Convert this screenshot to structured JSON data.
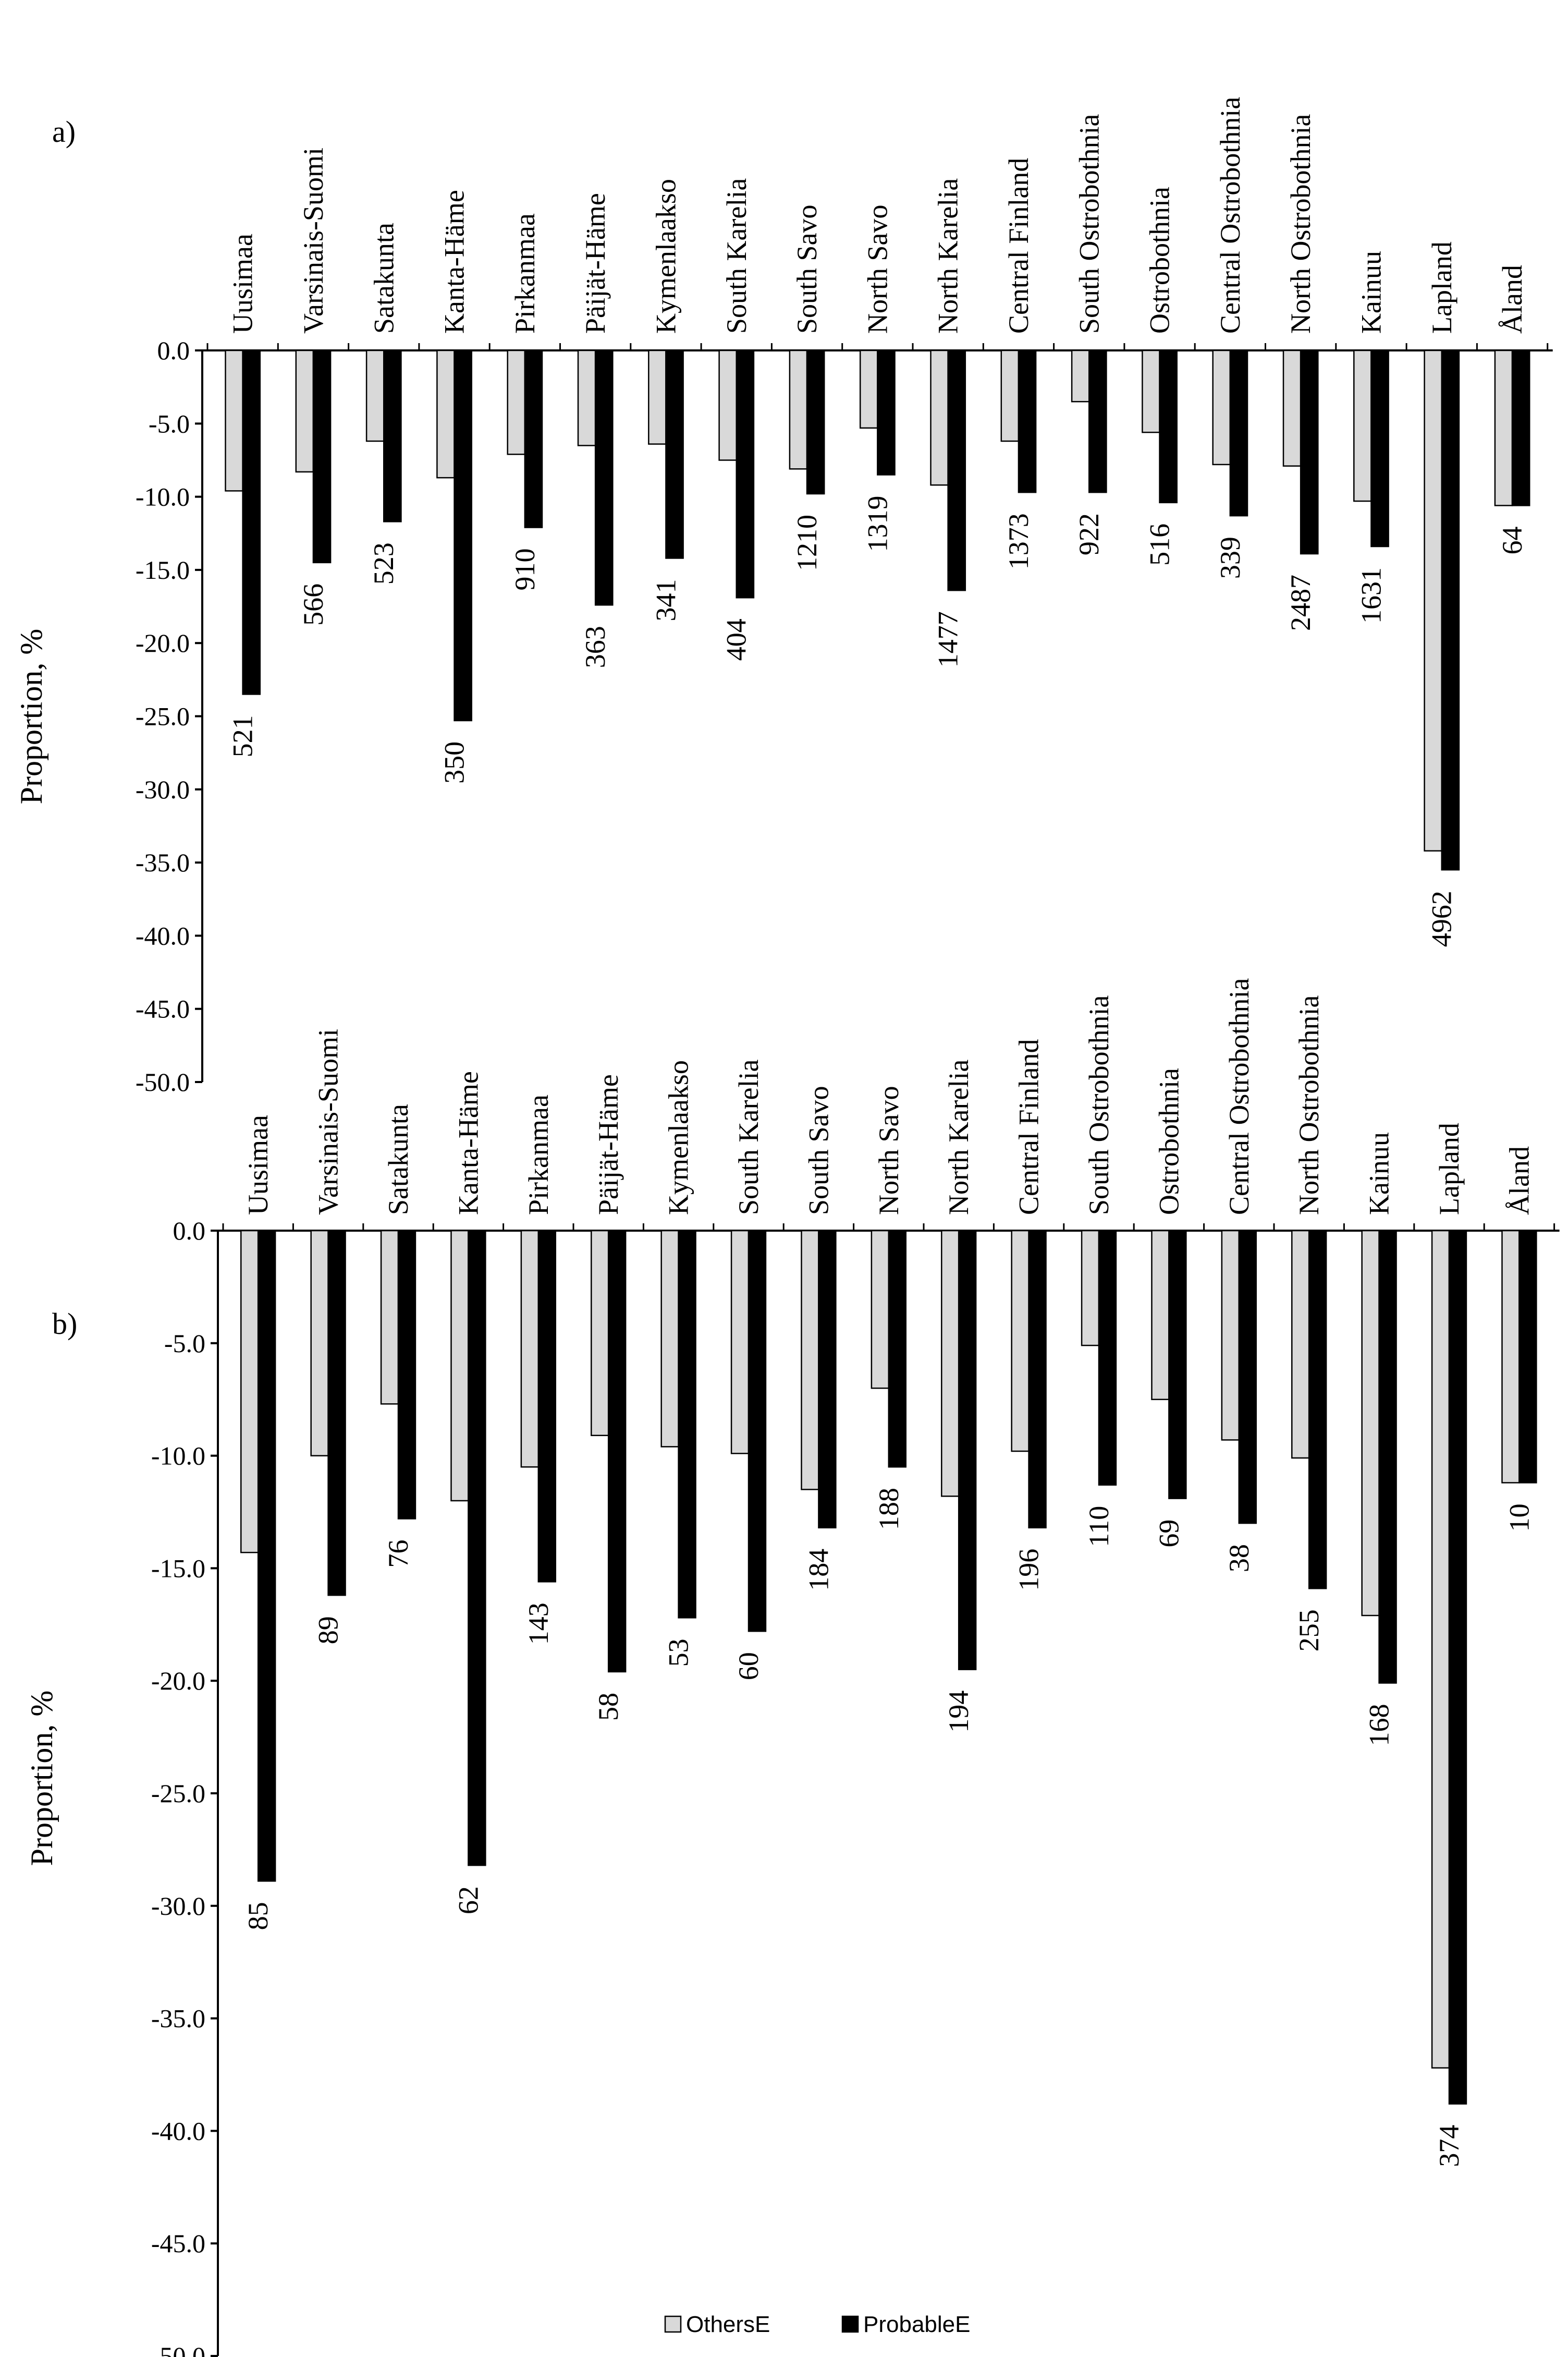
{
  "chart_data": [
    {
      "panel_label": "a)",
      "type": "bar",
      "ylabel": "Proportion, %",
      "ylim": [
        -50,
        0
      ],
      "ytick_step": 5,
      "categories": [
        "Uusimaa",
        "Varsinais-Suomi",
        "Satakunta",
        "Kanta-Häme",
        "Pirkanmaa",
        "Päijät-Häme",
        "Kymenlaakso",
        "South Karelia",
        "South Savo",
        "North Savo",
        "North Karelia",
        "Central Finland",
        "South Ostrobothnia",
        "Ostrobothnia",
        "Central Ostrobothnia",
        "North Ostrobothnia",
        "Kainuu",
        "Lapland",
        "Åland"
      ],
      "series": [
        {
          "name": "OthersE",
          "color": "#d9d9d9",
          "values": [
            -9.6,
            -8.3,
            -6.2,
            -8.7,
            -7.1,
            -6.5,
            -6.4,
            -7.5,
            -8.1,
            -5.3,
            -9.2,
            -6.2,
            -3.5,
            -5.6,
            -7.8,
            -7.9,
            -10.3,
            -34.2,
            -10.6
          ]
        },
        {
          "name": "ProbableE",
          "color": "#000000",
          "values": [
            -23.5,
            -14.5,
            -11.7,
            -25.3,
            -12.1,
            -17.4,
            -14.2,
            -16.9,
            -9.8,
            -8.5,
            -16.4,
            -9.7,
            -9.7,
            -10.4,
            -11.3,
            -13.9,
            -13.4,
            -35.5,
            -10.6
          ]
        }
      ],
      "data_labels": [
        "521",
        "566",
        "523",
        "350",
        "910",
        "363",
        "341",
        "404",
        "1210",
        "1319",
        "1477",
        "1373",
        "922",
        "516",
        "339",
        "2487",
        "1631",
        "4962",
        "64"
      ]
    },
    {
      "panel_label": "b)",
      "type": "bar",
      "ylabel": "Proportion, %",
      "ylim": [
        -50,
        0
      ],
      "ytick_step": 5,
      "categories": [
        "Uusimaa",
        "Varsinais-Suomi",
        "Satakunta",
        "Kanta-Häme",
        "Pirkanmaa",
        "Päijät-Häme",
        "Kymenlaakso",
        "South Karelia",
        "South Savo",
        "North Savo",
        "North Karelia",
        "Central Finland",
        "South Ostrobothnia",
        "Ostrobothnia",
        "Central Ostrobothnia",
        "North Ostrobothnia",
        "Kainuu",
        "Lapland",
        "Åland"
      ],
      "series": [
        {
          "name": "OthersE",
          "color": "#d9d9d9",
          "values": [
            -14.3,
            -10.0,
            -7.7,
            -12.0,
            -10.5,
            -9.1,
            -9.6,
            -9.9,
            -11.5,
            -7.0,
            -11.8,
            -9.8,
            -5.1,
            -7.5,
            -9.3,
            -10.1,
            -17.1,
            -37.2,
            -11.2
          ]
        },
        {
          "name": "ProbableE",
          "color": "#000000",
          "values": [
            -28.9,
            -16.2,
            -12.8,
            -28.2,
            -15.6,
            -19.6,
            -17.2,
            -17.8,
            -13.2,
            -10.5,
            -19.5,
            -13.2,
            -11.3,
            -11.9,
            -13.0,
            -15.9,
            -20.1,
            -38.8,
            -11.2
          ]
        }
      ],
      "data_labels": [
        "85",
        "89",
        "76",
        "62",
        "143",
        "58",
        "53",
        "60",
        "184",
        "188",
        "194",
        "196",
        "110",
        "69",
        "38",
        "255",
        "168",
        "374",
        "10"
      ],
      "legend": {
        "position": "bottom-center",
        "entries": [
          "OthersE",
          "ProbableE"
        ]
      }
    }
  ]
}
